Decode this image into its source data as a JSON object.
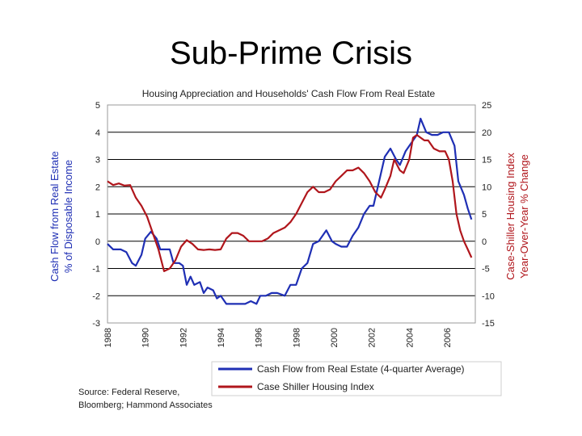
{
  "slide": {
    "title": "Sub-Prime Crisis"
  },
  "source": {
    "lines": [
      "Source:  Federal Reserve,",
      "Bloomberg; Hammond Associates"
    ]
  },
  "colors": {
    "cash_flow": "#1f2fb4",
    "case_shiller": "#b0161c",
    "axis_left_label": "#1f2fb4",
    "axis_right_label": "#b0161c",
    "grid": "#000000"
  },
  "chart_data": {
    "type": "line",
    "title": "Housing Appreciation and Households' Cash Flow From Real Estate",
    "xlabel": "",
    "ylabel": "Cash Flow from Real Estate % of Disposable Income",
    "ylabel_lines": [
      "Cash Flow from Real Estate",
      "% of Disposable Income"
    ],
    "y2label": "Case-Shiller Housing Index Year-Over-Year % Change",
    "y2label_lines": [
      "Case-Shiller Housing Index",
      "Year-Over-Year % Change"
    ],
    "xlim": [
      1988,
      2007.5
    ],
    "ylim": [
      -3,
      5
    ],
    "y2lim": [
      -15,
      25
    ],
    "x_ticks": [
      "1988",
      "1990",
      "1992",
      "1994",
      "1996",
      "1998",
      "2000",
      "2002",
      "2004",
      "2006"
    ],
    "y_ticks": [
      "5",
      "4",
      "3",
      "2",
      "1",
      "0",
      "-1",
      "-2",
      "-3"
    ],
    "y2_ticks": [
      "25",
      "20",
      "15",
      "10",
      "5",
      "0",
      "-5",
      "-10",
      "-15"
    ],
    "grid": true,
    "legend_position": "bottom",
    "series": [
      {
        "name": "Cash Flow from Real Estate (4-quarter Average)",
        "axis": "left",
        "points": [
          [
            1988.0,
            -0.1
          ],
          [
            1988.3,
            -0.3
          ],
          [
            1988.7,
            -0.3
          ],
          [
            1989.0,
            -0.4
          ],
          [
            1989.3,
            -0.8
          ],
          [
            1989.5,
            -0.9
          ],
          [
            1989.8,
            -0.5
          ],
          [
            1990.0,
            0.1
          ],
          [
            1990.3,
            0.35
          ],
          [
            1990.6,
            0.1
          ],
          [
            1990.8,
            -0.3
          ],
          [
            1991.0,
            -0.3
          ],
          [
            1991.3,
            -0.3
          ],
          [
            1991.5,
            -0.8
          ],
          [
            1991.8,
            -0.8
          ],
          [
            1992.0,
            -0.9
          ],
          [
            1992.2,
            -1.6
          ],
          [
            1992.4,
            -1.3
          ],
          [
            1992.6,
            -1.6
          ],
          [
            1992.9,
            -1.5
          ],
          [
            1993.1,
            -1.9
          ],
          [
            1993.3,
            -1.7
          ],
          [
            1993.6,
            -1.8
          ],
          [
            1993.8,
            -2.1
          ],
          [
            1994.0,
            -2.0
          ],
          [
            1994.3,
            -2.3
          ],
          [
            1994.6,
            -2.3
          ],
          [
            1995.0,
            -2.3
          ],
          [
            1995.3,
            -2.3
          ],
          [
            1995.6,
            -2.2
          ],
          [
            1995.9,
            -2.3
          ],
          [
            1996.1,
            -2.0
          ],
          [
            1996.4,
            -2.0
          ],
          [
            1996.7,
            -1.9
          ],
          [
            1997.0,
            -1.9
          ],
          [
            1997.4,
            -2.0
          ],
          [
            1997.7,
            -1.6
          ],
          [
            1998.0,
            -1.6
          ],
          [
            1998.3,
            -1.0
          ],
          [
            1998.6,
            -0.8
          ],
          [
            1998.9,
            -0.1
          ],
          [
            1999.2,
            0.0
          ],
          [
            1999.6,
            0.4
          ],
          [
            1999.9,
            0.0
          ],
          [
            2000.1,
            -0.1
          ],
          [
            2000.4,
            -0.2
          ],
          [
            2000.7,
            -0.2
          ],
          [
            2001.0,
            0.2
          ],
          [
            2001.3,
            0.5
          ],
          [
            2001.6,
            1.0
          ],
          [
            2001.9,
            1.3
          ],
          [
            2002.1,
            1.3
          ],
          [
            2002.4,
            2.2
          ],
          [
            2002.7,
            3.1
          ],
          [
            2003.0,
            3.4
          ],
          [
            2003.3,
            3.0
          ],
          [
            2003.5,
            2.8
          ],
          [
            2003.8,
            3.3
          ],
          [
            2004.1,
            3.6
          ],
          [
            2004.4,
            3.9
          ],
          [
            2004.6,
            4.5
          ],
          [
            2004.9,
            4.0
          ],
          [
            2005.2,
            3.9
          ],
          [
            2005.5,
            3.9
          ],
          [
            2005.8,
            4.0
          ],
          [
            2006.1,
            4.0
          ],
          [
            2006.4,
            3.5
          ],
          [
            2006.6,
            2.2
          ],
          [
            2006.9,
            1.7
          ],
          [
            2007.1,
            1.2
          ],
          [
            2007.3,
            0.8
          ]
        ]
      },
      {
        "name": "Case Shiller Housing Index",
        "axis": "right",
        "points": [
          [
            1988.0,
            11.0
          ],
          [
            1988.3,
            10.3
          ],
          [
            1988.6,
            10.6
          ],
          [
            1988.9,
            10.2
          ],
          [
            1989.2,
            10.3
          ],
          [
            1989.5,
            8.0
          ],
          [
            1989.8,
            6.5
          ],
          [
            1990.1,
            4.5
          ],
          [
            1990.4,
            1.5
          ],
          [
            1990.7,
            -1.5
          ],
          [
            1991.0,
            -5.5
          ],
          [
            1991.3,
            -5.0
          ],
          [
            1991.6,
            -3.5
          ],
          [
            1991.9,
            -1.0
          ],
          [
            1992.2,
            0.2
          ],
          [
            1992.5,
            -0.5
          ],
          [
            1992.8,
            -1.5
          ],
          [
            1993.1,
            -1.6
          ],
          [
            1993.4,
            -1.5
          ],
          [
            1993.7,
            -1.6
          ],
          [
            1994.0,
            -1.5
          ],
          [
            1994.3,
            0.5
          ],
          [
            1994.6,
            1.5
          ],
          [
            1994.9,
            1.5
          ],
          [
            1995.2,
            1.0
          ],
          [
            1995.5,
            0.0
          ],
          [
            1995.8,
            0.0
          ],
          [
            1996.2,
            0.0
          ],
          [
            1996.5,
            0.5
          ],
          [
            1996.8,
            1.5
          ],
          [
            1997.1,
            2.0
          ],
          [
            1997.4,
            2.5
          ],
          [
            1997.7,
            3.5
          ],
          [
            1998.0,
            5.0
          ],
          [
            1998.3,
            7.0
          ],
          [
            1998.6,
            9.0
          ],
          [
            1998.9,
            10.0
          ],
          [
            1999.2,
            9.0
          ],
          [
            1999.5,
            9.0
          ],
          [
            1999.8,
            9.5
          ],
          [
            2000.1,
            11.0
          ],
          [
            2000.4,
            12.0
          ],
          [
            2000.7,
            13.0
          ],
          [
            2001.0,
            13.0
          ],
          [
            2001.3,
            13.5
          ],
          [
            2001.6,
            12.5
          ],
          [
            2001.9,
            11.0
          ],
          [
            2002.2,
            9.0
          ],
          [
            2002.5,
            8.0
          ],
          [
            2002.7,
            9.5
          ],
          [
            2003.0,
            12.0
          ],
          [
            2003.2,
            15.0
          ],
          [
            2003.5,
            13.0
          ],
          [
            2003.7,
            12.5
          ],
          [
            2004.0,
            15.0
          ],
          [
            2004.2,
            19.0
          ],
          [
            2004.4,
            19.5
          ],
          [
            2004.6,
            19.0
          ],
          [
            2004.8,
            18.5
          ],
          [
            2005.0,
            18.5
          ],
          [
            2005.3,
            17.0
          ],
          [
            2005.6,
            16.5
          ],
          [
            2005.9,
            16.5
          ],
          [
            2006.1,
            15.0
          ],
          [
            2006.3,
            11.0
          ],
          [
            2006.5,
            5.0
          ],
          [
            2006.7,
            2.0
          ],
          [
            2006.9,
            0.0
          ],
          [
            2007.1,
            -1.5
          ],
          [
            2007.3,
            -3.0
          ]
        ]
      }
    ]
  }
}
